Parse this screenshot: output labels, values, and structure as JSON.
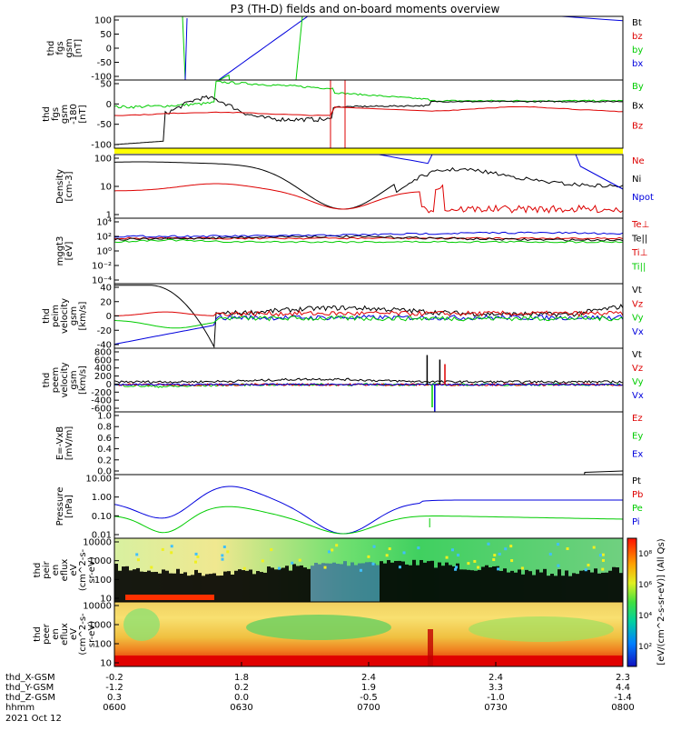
{
  "title": "P3 (TH-D) fields and on-board moments overview",
  "date_label": "2021 Oct 12",
  "colorbar_label": "[eV/(cm^2-s-sr-eV)] (All Qs)",
  "colorbar_ticks": [
    "10⁸",
    "10⁶",
    "10⁴",
    "10²"
  ],
  "x_ticks": [
    {
      "t": "0600",
      "x": "-0.2",
      "y": "-1.2",
      "z": "0.3"
    },
    {
      "t": "0630",
      "x": "1.8",
      "y": "0.2",
      "z": "0.0"
    },
    {
      "t": "0700",
      "x": "2.4",
      "y": "1.9",
      "z": "-0.5"
    },
    {
      "t": "0730",
      "x": "2.4",
      "y": "3.3",
      "z": "-1.0"
    },
    {
      "t": "0800",
      "x": "2.3",
      "y": "4.4",
      "z": "-1.4"
    }
  ],
  "x_row_labels": [
    "thd_X-GSM",
    "thd_Y-GSM",
    "thd_Z-GSM",
    "hhmm"
  ],
  "colors": {
    "black": "#000000",
    "red": "#dd0000",
    "green": "#00cc00",
    "blue": "#0000dd",
    "yellow": "#ffff00"
  },
  "chart_data": [
    {
      "type": "line",
      "ylabel": [
        "thd",
        "fgs",
        "gsm",
        "[nT]"
      ],
      "ylim": [
        -100,
        100
      ],
      "yticks": [
        "100",
        "50",
        "0",
        "-50",
        "-100"
      ],
      "legend": [
        {
          "name": "Bt",
          "color": "black"
        },
        {
          "name": "bz",
          "color": "red"
        },
        {
          "name": "by",
          "color": "green"
        },
        {
          "name": "bx",
          "color": "blue"
        }
      ]
    },
    {
      "type": "line",
      "ylabel": [
        "thd",
        "fgs",
        "gsm",
        "-180",
        "[nT]"
      ],
      "ylim": [
        -130,
        60
      ],
      "yticks": [
        "50",
        "0",
        "-50",
        "-100"
      ],
      "legend": [
        {
          "name": "By",
          "color": "green"
        },
        {
          "name": "Bx",
          "color": "black"
        },
        {
          "name": "Bz",
          "color": "red"
        }
      ]
    },
    {
      "type": "line",
      "ylabel": [
        "Density",
        "[cm-3]"
      ],
      "ylim": [
        0.5,
        200
      ],
      "scale": "log",
      "yticks": [
        "100",
        "10",
        "1"
      ],
      "legend": [
        {
          "name": "Ne",
          "color": "red"
        },
        {
          "name": "Ni",
          "color": "black"
        },
        {
          "name": "Npot",
          "color": "blue"
        }
      ]
    },
    {
      "type": "line",
      "ylabel": [
        "mggt3",
        "[eV]"
      ],
      "scale": "log",
      "yticks": [
        "10⁴",
        "10²",
        "10⁰",
        "10⁻²",
        "10⁻⁴"
      ],
      "legend": [
        {
          "name": "Te⊥",
          "color": "red"
        },
        {
          "name": "Te||",
          "color": "black"
        },
        {
          "name": "Ti⊥",
          "color": "red"
        },
        {
          "name": "Ti||",
          "color": "green"
        }
      ]
    },
    {
      "type": "line",
      "ylabel": [
        "thd",
        "peim",
        "velocity",
        "gsm",
        "[km/s]"
      ],
      "ylim": [
        -40,
        40
      ],
      "yticks": [
        "40",
        "20",
        "0",
        "-20",
        "-40"
      ],
      "legend": [
        {
          "name": "Vt",
          "color": "black"
        },
        {
          "name": "Vz",
          "color": "red"
        },
        {
          "name": "Vy",
          "color": "green"
        },
        {
          "name": "Vx",
          "color": "blue"
        }
      ]
    },
    {
      "type": "line",
      "ylabel": [
        "thd",
        "peem",
        "velocity",
        "gsm",
        "[km/s]"
      ],
      "ylim": [
        -600,
        800
      ],
      "yticks": [
        "800",
        "600",
        "400",
        "200",
        "0",
        "-200",
        "-400",
        "-600"
      ],
      "legend": [
        {
          "name": "Vt",
          "color": "black"
        },
        {
          "name": "Vz",
          "color": "red"
        },
        {
          "name": "Vy",
          "color": "green"
        },
        {
          "name": "Vx",
          "color": "blue"
        }
      ]
    },
    {
      "type": "line",
      "ylabel": [
        "E=-VxB",
        "[mV/m]"
      ],
      "ylim": [
        0,
        1
      ],
      "yticks": [
        "1.0",
        "0.8",
        "0.6",
        "0.4",
        "0.2",
        "0.0"
      ],
      "legend": [
        {
          "name": "Ez",
          "color": "red"
        },
        {
          "name": "Ey",
          "color": "green"
        },
        {
          "name": "Ex",
          "color": "blue"
        }
      ]
    },
    {
      "type": "line",
      "ylabel": [
        "Pressure",
        "[nPa]"
      ],
      "scale": "log",
      "ylim": [
        0.01,
        10
      ],
      "yticks": [
        "10.00",
        "1.00",
        "0.10",
        "0.01"
      ],
      "legend": [
        {
          "name": "Pt",
          "color": "black"
        },
        {
          "name": "Pb",
          "color": "red"
        },
        {
          "name": "Pe",
          "color": "green"
        },
        {
          "name": "Pi",
          "color": "blue"
        }
      ]
    },
    {
      "type": "heatmap",
      "ylabel": [
        "thd",
        "peir",
        "en",
        "eflux",
        "eV",
        "(cm^2-s-",
        "sr-eV)"
      ],
      "scale": "log",
      "yticks": [
        "10000",
        "1000",
        "100",
        "10"
      ]
    },
    {
      "type": "heatmap",
      "ylabel": [
        "thd",
        "peer",
        "en",
        "eflux",
        "eV",
        "(cm^2-s-",
        "sr-eV)"
      ],
      "scale": "log",
      "yticks": [
        "10000",
        "1000",
        "100",
        "10"
      ]
    }
  ]
}
